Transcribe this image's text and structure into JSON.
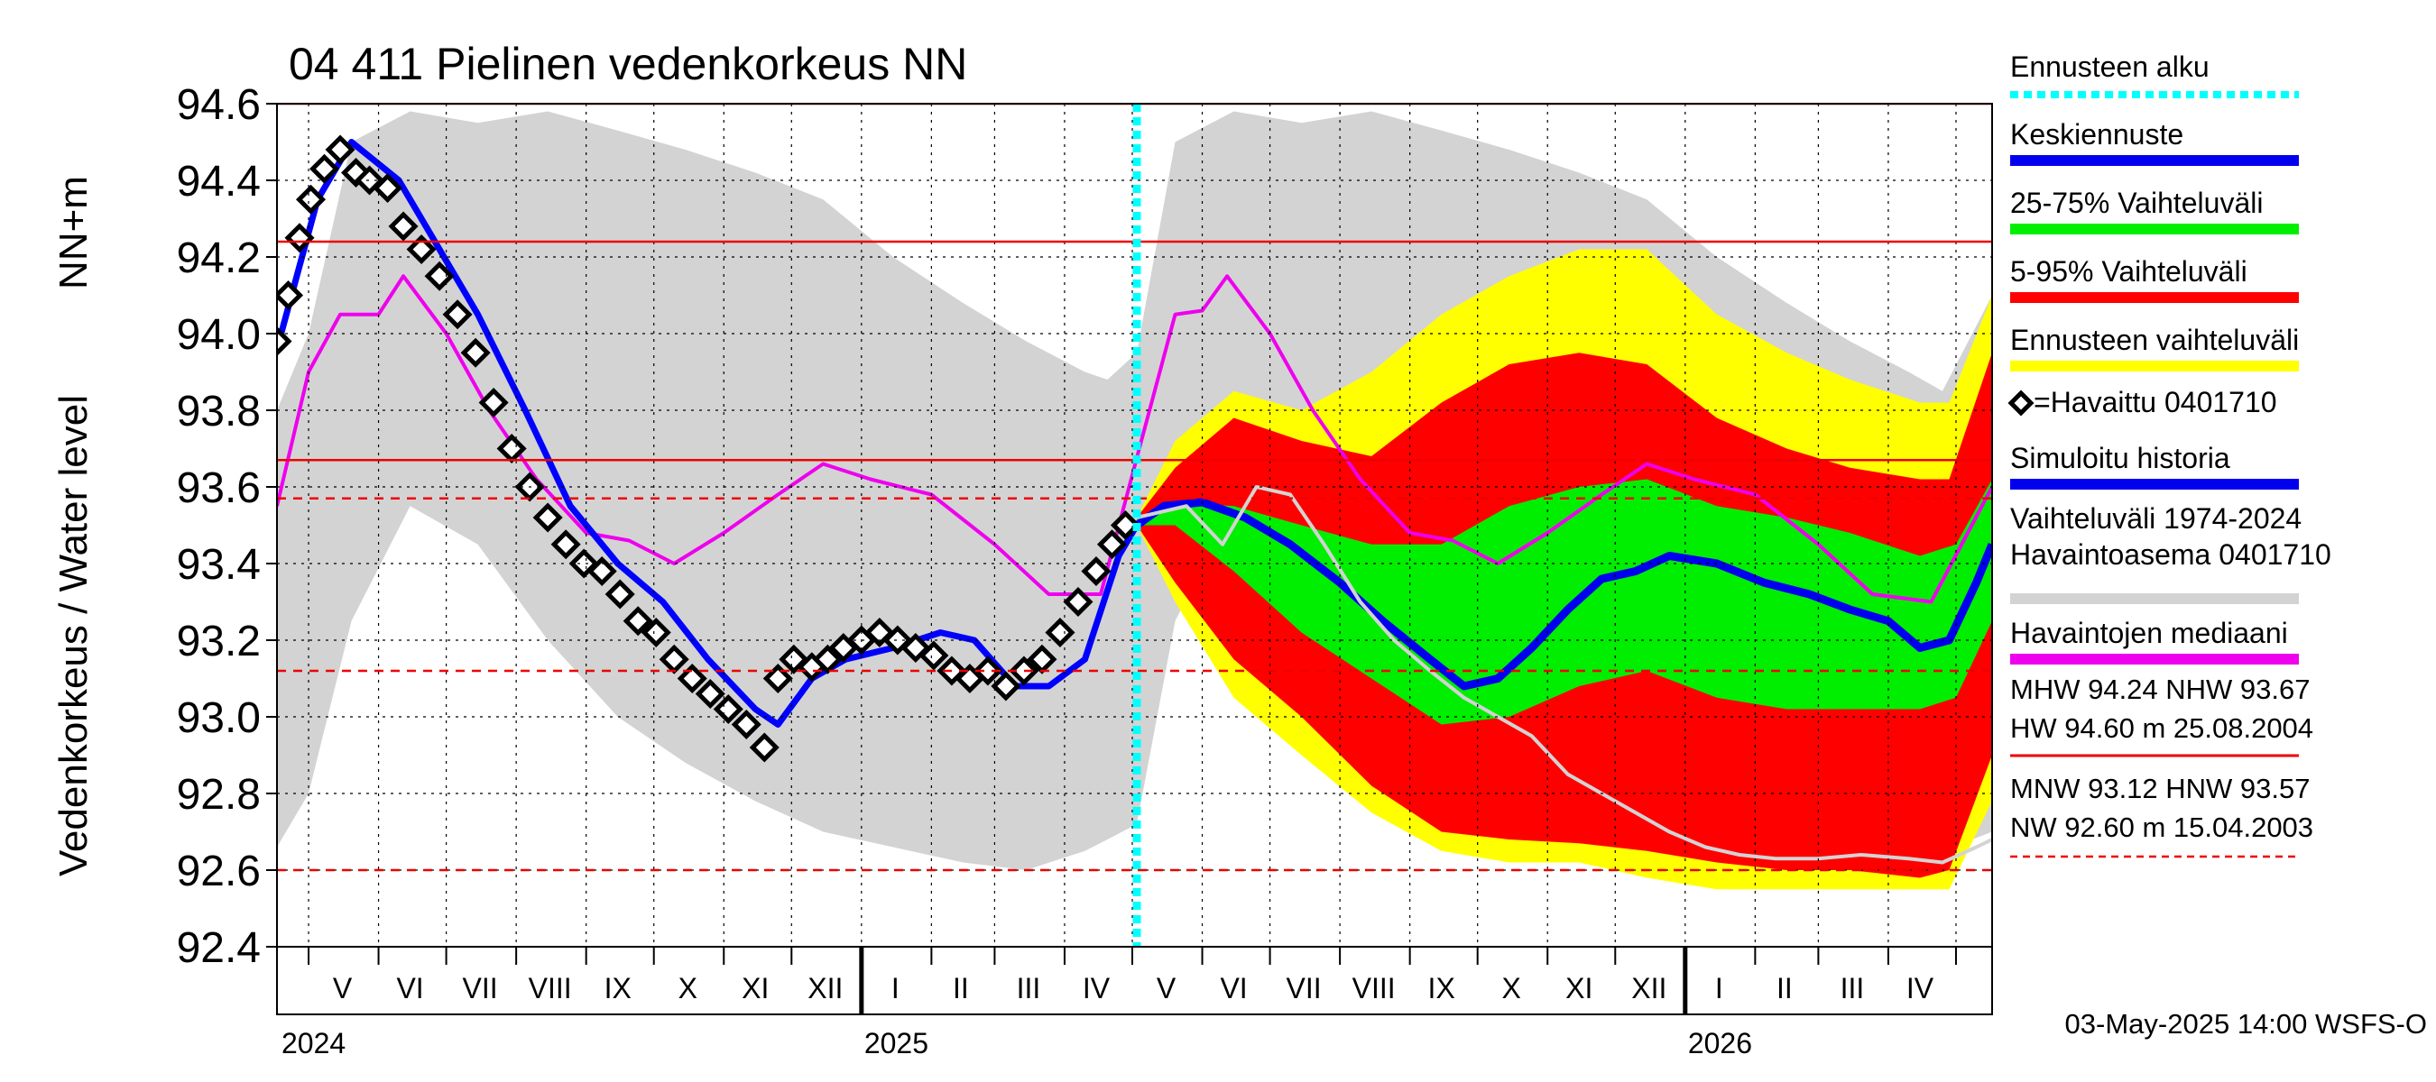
{
  "chart_data": {
    "type": "line",
    "title": "04 411 Pielinen vedenkorkeus NN",
    "ylabel": "Vedenkorkeus / Water level",
    "yunit": "NN+m",
    "ylim": [
      92.4,
      94.6
    ],
    "y_ticks": [
      "94.6",
      "94.4",
      "94.2",
      "94.0",
      "93.8",
      "93.6",
      "93.4",
      "93.2",
      "93.0",
      "92.8",
      "92.6",
      "92.4"
    ],
    "x_start": "2024-04-17",
    "x_end": "2026-05-17",
    "forecast_start": "2025-05-03",
    "month_labels": [
      {
        "label": "V",
        "date": "2024-05-16"
      },
      {
        "label": "VI",
        "date": "2024-06-15"
      },
      {
        "label": "VII",
        "date": "2024-07-16"
      },
      {
        "label": "VIII",
        "date": "2024-08-16"
      },
      {
        "label": "IX",
        "date": "2024-09-15"
      },
      {
        "label": "X",
        "date": "2024-10-16"
      },
      {
        "label": "XI",
        "date": "2024-11-15"
      },
      {
        "label": "XII",
        "date": "2024-12-16"
      },
      {
        "label": "I",
        "date": "2025-01-16"
      },
      {
        "label": "II",
        "date": "2025-02-14"
      },
      {
        "label": "III",
        "date": "2025-03-16"
      },
      {
        "label": "IV",
        "date": "2025-04-15"
      },
      {
        "label": "V",
        "date": "2025-05-16"
      },
      {
        "label": "VI",
        "date": "2025-06-15"
      },
      {
        "label": "VII",
        "date": "2025-07-16"
      },
      {
        "label": "VIII",
        "date": "2025-08-16"
      },
      {
        "label": "IX",
        "date": "2025-09-15"
      },
      {
        "label": "X",
        "date": "2025-10-16"
      },
      {
        "label": "XI",
        "date": "2025-11-15"
      },
      {
        "label": "XII",
        "date": "2025-12-16"
      },
      {
        "label": "I",
        "date": "2026-01-16"
      },
      {
        "label": "II",
        "date": "2026-02-14"
      },
      {
        "label": "III",
        "date": "2026-03-16"
      },
      {
        "label": "IV",
        "date": "2026-04-15"
      }
    ],
    "year_labels": [
      {
        "label": "2024",
        "date": "2024-05-01"
      },
      {
        "label": "2025",
        "date": "2025-01-01"
      },
      {
        "label": "2026",
        "date": "2026-01-01"
      }
    ],
    "reference_lines": [
      {
        "name": "HW",
        "value": 94.6,
        "style": "solid"
      },
      {
        "name": "MHW",
        "value": 94.24,
        "style": "solid"
      },
      {
        "name": "NHW",
        "value": 93.67,
        "style": "solid"
      },
      {
        "name": "HNW",
        "value": 93.57,
        "style": "dashed"
      },
      {
        "name": "MNW",
        "value": 93.12,
        "style": "dashed"
      },
      {
        "name": "NW",
        "value": 92.6,
        "style": "dashed"
      }
    ],
    "series": [
      {
        "name": "Vaihteluväli 1974-2024 Havaintoasema 0401710",
        "type": "band",
        "color": "#d3d3d3",
        "x": [
          "2024-04-17",
          "2024-05-01",
          "2024-05-20",
          "2024-06-15",
          "2024-07-15",
          "2024-08-15",
          "2024-09-15",
          "2024-10-15",
          "2024-11-15",
          "2024-12-15",
          "2025-01-15",
          "2025-02-15",
          "2025-03-15",
          "2025-04-10",
          "2025-04-20",
          "2025-05-03",
          "2025-05-20",
          "2025-06-15",
          "2025-07-15",
          "2025-08-15",
          "2025-09-15",
          "2025-10-15",
          "2025-11-15",
          "2025-12-15",
          "2026-01-15",
          "2026-02-15",
          "2026-03-15",
          "2026-04-10",
          "2026-04-25",
          "2026-05-17"
        ],
        "low": [
          92.66,
          92.8,
          93.25,
          93.55,
          93.45,
          93.2,
          93.0,
          92.88,
          92.78,
          92.7,
          92.66,
          92.62,
          92.6,
          92.65,
          92.68,
          92.72,
          93.25,
          93.55,
          93.45,
          93.2,
          93.0,
          92.88,
          92.78,
          92.7,
          92.66,
          92.62,
          92.6,
          92.62,
          92.65,
          92.7
        ],
        "high": [
          93.8,
          94.0,
          94.5,
          94.58,
          94.55,
          94.58,
          94.53,
          94.48,
          94.42,
          94.35,
          94.2,
          94.08,
          93.98,
          93.9,
          93.88,
          93.95,
          94.5,
          94.58,
          94.55,
          94.58,
          94.53,
          94.48,
          94.42,
          94.35,
          94.2,
          94.08,
          93.98,
          93.9,
          93.85,
          94.1
        ]
      },
      {
        "name": "Ennusteen vaihteluväli",
        "type": "band",
        "color": "#ffff00",
        "x": [
          "2025-05-03",
          "2025-05-20",
          "2025-06-15",
          "2025-07-15",
          "2025-08-15",
          "2025-09-15",
          "2025-10-15",
          "2025-11-15",
          "2025-12-15",
          "2026-01-15",
          "2026-02-15",
          "2026-03-15",
          "2026-04-15",
          "2026-04-28",
          "2026-05-17"
        ],
        "low": [
          93.5,
          93.3,
          93.05,
          92.9,
          92.75,
          92.65,
          92.62,
          92.62,
          92.58,
          92.55,
          92.55,
          92.55,
          92.55,
          92.55,
          92.78
        ],
        "high": [
          93.52,
          93.72,
          93.85,
          93.8,
          93.9,
          94.05,
          94.15,
          94.22,
          94.22,
          94.05,
          93.95,
          93.88,
          93.82,
          93.82,
          94.1
        ]
      },
      {
        "name": "5-95% Vaihteluväli",
        "type": "band",
        "color": "#ff0000",
        "x": [
          "2025-05-03",
          "2025-05-20",
          "2025-06-15",
          "2025-07-15",
          "2025-08-15",
          "2025-09-15",
          "2025-10-15",
          "2025-11-15",
          "2025-12-15",
          "2026-01-15",
          "2026-02-15",
          "2026-03-15",
          "2026-04-15",
          "2026-04-28",
          "2026-05-17"
        ],
        "low": [
          93.5,
          93.35,
          93.15,
          93.0,
          92.82,
          92.7,
          92.68,
          92.67,
          92.65,
          92.62,
          92.6,
          92.6,
          92.58,
          92.6,
          92.9
        ],
        "high": [
          93.52,
          93.65,
          93.78,
          93.72,
          93.68,
          93.82,
          93.92,
          93.95,
          93.92,
          93.78,
          93.7,
          93.65,
          93.62,
          93.62,
          93.95
        ]
      },
      {
        "name": "25-75% Vaihteluväli",
        "type": "band",
        "color": "#00ee00",
        "x": [
          "2025-05-03",
          "2025-05-20",
          "2025-06-15",
          "2025-07-15",
          "2025-08-15",
          "2025-09-15",
          "2025-10-15",
          "2025-11-15",
          "2025-12-15",
          "2026-01-15",
          "2026-02-15",
          "2026-03-15",
          "2026-04-15",
          "2026-05-01",
          "2026-05-17"
        ],
        "low": [
          93.5,
          93.5,
          93.38,
          93.22,
          93.1,
          92.98,
          93.0,
          93.08,
          93.12,
          93.05,
          93.02,
          93.02,
          93.02,
          93.05,
          93.25
        ],
        "high": [
          93.52,
          93.56,
          93.55,
          93.5,
          93.45,
          93.45,
          93.55,
          93.6,
          93.62,
          93.55,
          93.52,
          93.48,
          93.42,
          93.45,
          93.62
        ]
      },
      {
        "name": "Havaintojen mediaani",
        "type": "line",
        "color": "#ee00ee",
        "x": [
          "2024-04-17",
          "2024-05-01",
          "2024-05-15",
          "2024-06-01",
          "2024-06-12",
          "2024-07-01",
          "2024-07-20",
          "2024-08-10",
          "2024-09-01",
          "2024-09-20",
          "2024-10-10",
          "2024-11-01",
          "2024-11-25",
          "2024-12-15",
          "2025-01-05",
          "2025-02-01",
          "2025-03-01",
          "2025-03-25",
          "2025-04-17",
          "2025-05-05",
          "2025-05-20",
          "2025-06-01",
          "2025-06-12",
          "2025-07-01",
          "2025-07-20",
          "2025-08-10",
          "2025-09-01",
          "2025-09-20",
          "2025-10-10",
          "2025-11-01",
          "2025-11-25",
          "2025-12-15",
          "2026-01-05",
          "2026-02-01",
          "2026-03-01",
          "2026-03-25",
          "2026-04-20",
          "2026-05-17"
        ],
        "y": [
          93.55,
          93.9,
          94.05,
          94.05,
          94.15,
          94.0,
          93.8,
          93.62,
          93.48,
          93.46,
          93.4,
          93.48,
          93.58,
          93.66,
          93.62,
          93.58,
          93.45,
          93.32,
          93.32,
          93.72,
          94.05,
          94.06,
          94.15,
          94.0,
          93.8,
          93.62,
          93.48,
          93.46,
          93.4,
          93.48,
          93.58,
          93.66,
          93.62,
          93.58,
          93.45,
          93.32,
          93.3,
          93.6
        ]
      },
      {
        "name": "Simuloitu historia",
        "type": "line",
        "color": "#0000ff",
        "x": [
          "2024-04-17",
          "2024-05-05",
          "2024-05-20",
          "2024-06-10",
          "2024-06-25",
          "2024-07-15",
          "2024-08-05",
          "2024-08-25",
          "2024-09-15",
          "2024-10-05",
          "2024-10-25",
          "2024-11-15",
          "2024-11-25",
          "2024-12-10",
          "2024-12-25",
          "2025-01-15",
          "2025-02-05",
          "2025-02-20",
          "2025-03-10",
          "2025-03-25",
          "2025-04-10",
          "2025-04-25",
          "2025-05-03"
        ],
        "y": [
          93.96,
          94.35,
          94.5,
          94.4,
          94.25,
          94.05,
          93.8,
          93.55,
          93.4,
          93.3,
          93.15,
          93.02,
          92.98,
          93.1,
          93.15,
          93.18,
          93.22,
          93.2,
          93.08,
          93.08,
          93.15,
          93.42,
          93.5
        ]
      },
      {
        "name": "Keskiennuste",
        "type": "line",
        "color": "#0000ee",
        "x": [
          "2025-05-03",
          "2025-05-15",
          "2025-06-01",
          "2025-06-20",
          "2025-07-10",
          "2025-08-01",
          "2025-08-20",
          "2025-09-10",
          "2025-09-25",
          "2025-10-10",
          "2025-10-25",
          "2025-11-10",
          "2025-11-25",
          "2025-12-10",
          "2025-12-25",
          "2026-01-15",
          "2026-02-05",
          "2026-02-25",
          "2026-03-15",
          "2026-04-01",
          "2026-04-15",
          "2026-04-28",
          "2026-05-10",
          "2026-05-17"
        ],
        "y": [
          93.5,
          93.55,
          93.56,
          93.52,
          93.45,
          93.35,
          93.25,
          93.15,
          93.08,
          93.1,
          93.18,
          93.28,
          93.36,
          93.38,
          93.42,
          93.4,
          93.35,
          93.32,
          93.28,
          93.25,
          93.18,
          93.2,
          93.35,
          93.45
        ]
      },
      {
        "name": "Havaittu 0401710",
        "type": "markers",
        "color": "#000000",
        "x": [
          "2024-04-17",
          "2024-04-22",
          "2024-04-27",
          "2024-05-02",
          "2024-05-08",
          "2024-05-15",
          "2024-05-22",
          "2024-05-28",
          "2024-06-05",
          "2024-06-12",
          "2024-06-20",
          "2024-06-28",
          "2024-07-06",
          "2024-07-14",
          "2024-07-22",
          "2024-07-30",
          "2024-08-07",
          "2024-08-15",
          "2024-08-23",
          "2024-08-31",
          "2024-09-08",
          "2024-09-16",
          "2024-09-24",
          "2024-10-02",
          "2024-10-10",
          "2024-10-18",
          "2024-10-26",
          "2024-11-03",
          "2024-11-11",
          "2024-11-19",
          "2024-11-25",
          "2024-12-02",
          "2024-12-10",
          "2024-12-17",
          "2024-12-24",
          "2025-01-01",
          "2025-01-09",
          "2025-01-17",
          "2025-01-25",
          "2025-02-02",
          "2025-02-10",
          "2025-02-18",
          "2025-02-26",
          "2025-03-06",
          "2025-03-14",
          "2025-03-22",
          "2025-03-30",
          "2025-04-07",
          "2025-04-15",
          "2025-04-22",
          "2025-04-28"
        ],
        "y": [
          93.98,
          94.1,
          94.25,
          94.35,
          94.43,
          94.48,
          94.42,
          94.4,
          94.38,
          94.28,
          94.22,
          94.15,
          94.05,
          93.95,
          93.82,
          93.7,
          93.6,
          93.52,
          93.45,
          93.4,
          93.38,
          93.32,
          93.25,
          93.22,
          93.15,
          93.1,
          93.06,
          93.02,
          92.98,
          92.92,
          93.1,
          93.15,
          93.13,
          93.15,
          93.18,
          93.2,
          93.22,
          93.2,
          93.18,
          93.16,
          93.12,
          93.1,
          93.12,
          93.08,
          93.12,
          93.15,
          93.22,
          93.3,
          93.38,
          93.45,
          93.5
        ]
      },
      {
        "name": "Havaittu 0401710 (edellinen vuosi)",
        "type": "line",
        "color": "#d3d3d3",
        "x": [
          "2025-05-03",
          "2025-05-25",
          "2025-06-10",
          "2025-06-25",
          "2025-07-10",
          "2025-07-25",
          "2025-08-10",
          "2025-08-25",
          "2025-09-10",
          "2025-09-25",
          "2025-10-10",
          "2025-10-25",
          "2025-11-10",
          "2025-11-25",
          "2025-12-10",
          "2025-12-25",
          "2026-01-10",
          "2026-01-25",
          "2026-02-10",
          "2026-03-01",
          "2026-03-20",
          "2026-04-10",
          "2026-04-25",
          "2026-05-10",
          "2026-05-17"
        ],
        "y": [
          93.52,
          93.55,
          93.45,
          93.6,
          93.58,
          93.45,
          93.3,
          93.2,
          93.12,
          93.05,
          93.0,
          92.95,
          92.85,
          92.8,
          92.75,
          92.7,
          92.66,
          92.64,
          92.63,
          92.63,
          92.64,
          92.63,
          92.62,
          92.66,
          92.68
        ]
      }
    ],
    "legend": [
      {
        "label": "Ennusteen alku",
        "color": "#00ffff",
        "kind": "dotted"
      },
      {
        "label": "Keskiennuste",
        "color": "#0000ee",
        "kind": "line"
      },
      {
        "label": "25-75% Vaihteluväli",
        "color": "#00ee00",
        "kind": "line"
      },
      {
        "label": "5-95% Vaihteluväli",
        "color": "#ff0000",
        "kind": "line"
      },
      {
        "label": "Ennusteen vaihteluväli",
        "color": "#ffff00",
        "kind": "line"
      },
      {
        "label": "=Havaittu 0401710",
        "color": "#000000",
        "kind": "marker"
      },
      {
        "label": "Simuloitu historia",
        "color": "#0000ee",
        "kind": "line"
      },
      {
        "label": "Vaihteluväli 1974-2024",
        "label2": " Havaintoasema 0401710",
        "color": "#d3d3d3",
        "kind": "line"
      },
      {
        "label": "Havaintojen mediaani",
        "color": "#ee00ee",
        "kind": "line"
      }
    ],
    "stats": {
      "line1": "MHW  94.24 NHW  93.67",
      "line2": "HW  94.60 m 25.08.2004",
      "line3": "MNW  93.12 HNW  93.57",
      "line4": "NW  92.60 m 15.04.2003"
    },
    "footer": "03-May-2025 14:00 WSFS-O"
  }
}
